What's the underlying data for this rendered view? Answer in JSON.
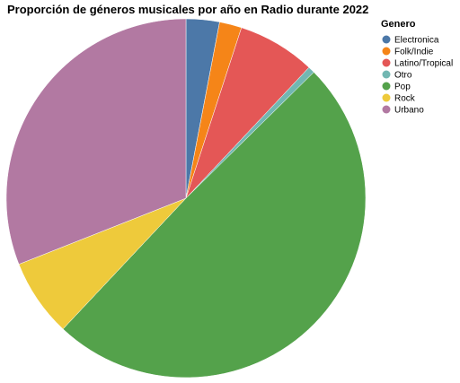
{
  "chart_data": {
    "type": "pie",
    "title": "Proporción de géneros musicales por año en Radio durante 2022",
    "legend": {
      "title": "Genero",
      "placement": "top-right"
    },
    "series": [
      {
        "name": "Electronica",
        "value": 3.0,
        "color": "#4c78a8"
      },
      {
        "name": "Folk/Indie",
        "value": 2.0,
        "color": "#f58518"
      },
      {
        "name": "Latino/Tropical",
        "value": 7.0,
        "color": "#e45756"
      },
      {
        "name": "Otro",
        "value": 0.6,
        "color": "#72b7b2"
      },
      {
        "name": "Pop",
        "value": 49.4,
        "color": "#54a24b"
      },
      {
        "name": "Rock",
        "value": 7.0,
        "color": "#eeca3b"
      },
      {
        "name": "Urbano",
        "value": 31.0,
        "color": "#b279a2"
      }
    ]
  }
}
